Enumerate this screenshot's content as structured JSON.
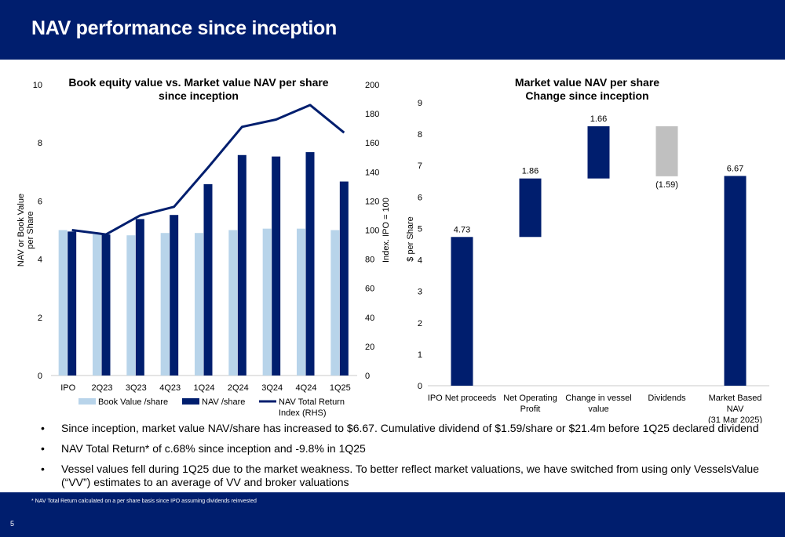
{
  "page": {
    "title": "NAV performance since inception",
    "page_number": "5",
    "footnote": "* NAV Total Return calculated on a per share basis since IPO assuming dividends reinvested"
  },
  "colors": {
    "navy": "#001e6e",
    "light_blue": "#b8d4ea",
    "grey": "#c0c0c0"
  },
  "bullets": [
    "Since inception, market value NAV/share has increased to $6.67. Cumulative dividend of $1.59/share or $21.4m before 1Q25 declared dividend",
    "NAV Total Return* of c.68% since inception and -9.8% in 1Q25",
    "Vessel values fell during 1Q25 due to the market weakness. To better reflect market valuations, we have switched from using only VesselsValue (“VV”) estimates to an average of VV and broker valuations"
  ],
  "chart_data": [
    {
      "type": "bar",
      "title_lines": [
        "Book equity value vs. Market value NAV per share",
        "since inception"
      ],
      "ylabel_lines": [
        "NAV or Book Value",
        "per Share"
      ],
      "y2label": "Index. IPO = 100",
      "categories": [
        "IPO",
        "2Q23",
        "3Q23",
        "4Q23",
        "1Q24",
        "2Q24",
        "3Q24",
        "4Q24",
        "1Q25"
      ],
      "ylim": [
        0,
        10
      ],
      "yticks": [
        "0",
        "2",
        "4",
        "6",
        "8",
        "10"
      ],
      "y2lim": [
        0,
        200
      ],
      "y2ticks": [
        "0",
        "20",
        "40",
        "60",
        "80",
        "100",
        "120",
        "140",
        "160",
        "180",
        "200"
      ],
      "series": [
        {
          "name": "Book Value /share",
          "kind": "bar",
          "color": "#b8d4ea",
          "values": [
            5.0,
            4.85,
            4.82,
            4.9,
            4.9,
            5.0,
            5.05,
            5.05,
            5.0
          ]
        },
        {
          "name": "NAV /share",
          "kind": "bar",
          "color": "#001e6e",
          "values": [
            4.95,
            4.85,
            5.38,
            5.52,
            6.58,
            7.58,
            7.53,
            7.68,
            6.67
          ]
        },
        {
          "name_lines": [
            "NAV Total Return",
            "Index (RHS)"
          ],
          "kind": "line",
          "axis": "right",
          "color": "#001e6e",
          "values": [
            100,
            97,
            110,
            116,
            143,
            171,
            176,
            186,
            167
          ]
        }
      ]
    },
    {
      "type": "waterfall",
      "title_lines": [
        "Market value NAV per share",
        "Change since inception"
      ],
      "ylabel": "$ per Share",
      "ylim": [
        0,
        9
      ],
      "yticks": [
        "0",
        "1",
        "2",
        "3",
        "4",
        "5",
        "6",
        "7",
        "8",
        "9"
      ],
      "bars": [
        {
          "category_lines": [
            "IPO Net proceeds"
          ],
          "start": 0,
          "end": 4.73,
          "label": "4.73",
          "color": "#001e6e",
          "label_pos": "above"
        },
        {
          "category_lines": [
            "Net Operating",
            "Profit"
          ],
          "start": 4.73,
          "end": 6.59,
          "label": "1.86",
          "color": "#001e6e",
          "label_pos": "above"
        },
        {
          "category_lines": [
            "Change in vessel",
            "value"
          ],
          "start": 6.59,
          "end": 8.25,
          "label": "1.66",
          "color": "#001e6e",
          "label_pos": "above"
        },
        {
          "category_lines": [
            "Dividends"
          ],
          "start": 6.66,
          "end": 8.25,
          "label": "(1.59)",
          "color": "#c0c0c0",
          "label_pos": "below"
        },
        {
          "category_lines": [
            "Market Based",
            "NAV",
            "(31 Mar 2025)"
          ],
          "start": 0,
          "end": 6.67,
          "label": "6.67",
          "color": "#001e6e",
          "label_pos": "above"
        }
      ]
    }
  ]
}
